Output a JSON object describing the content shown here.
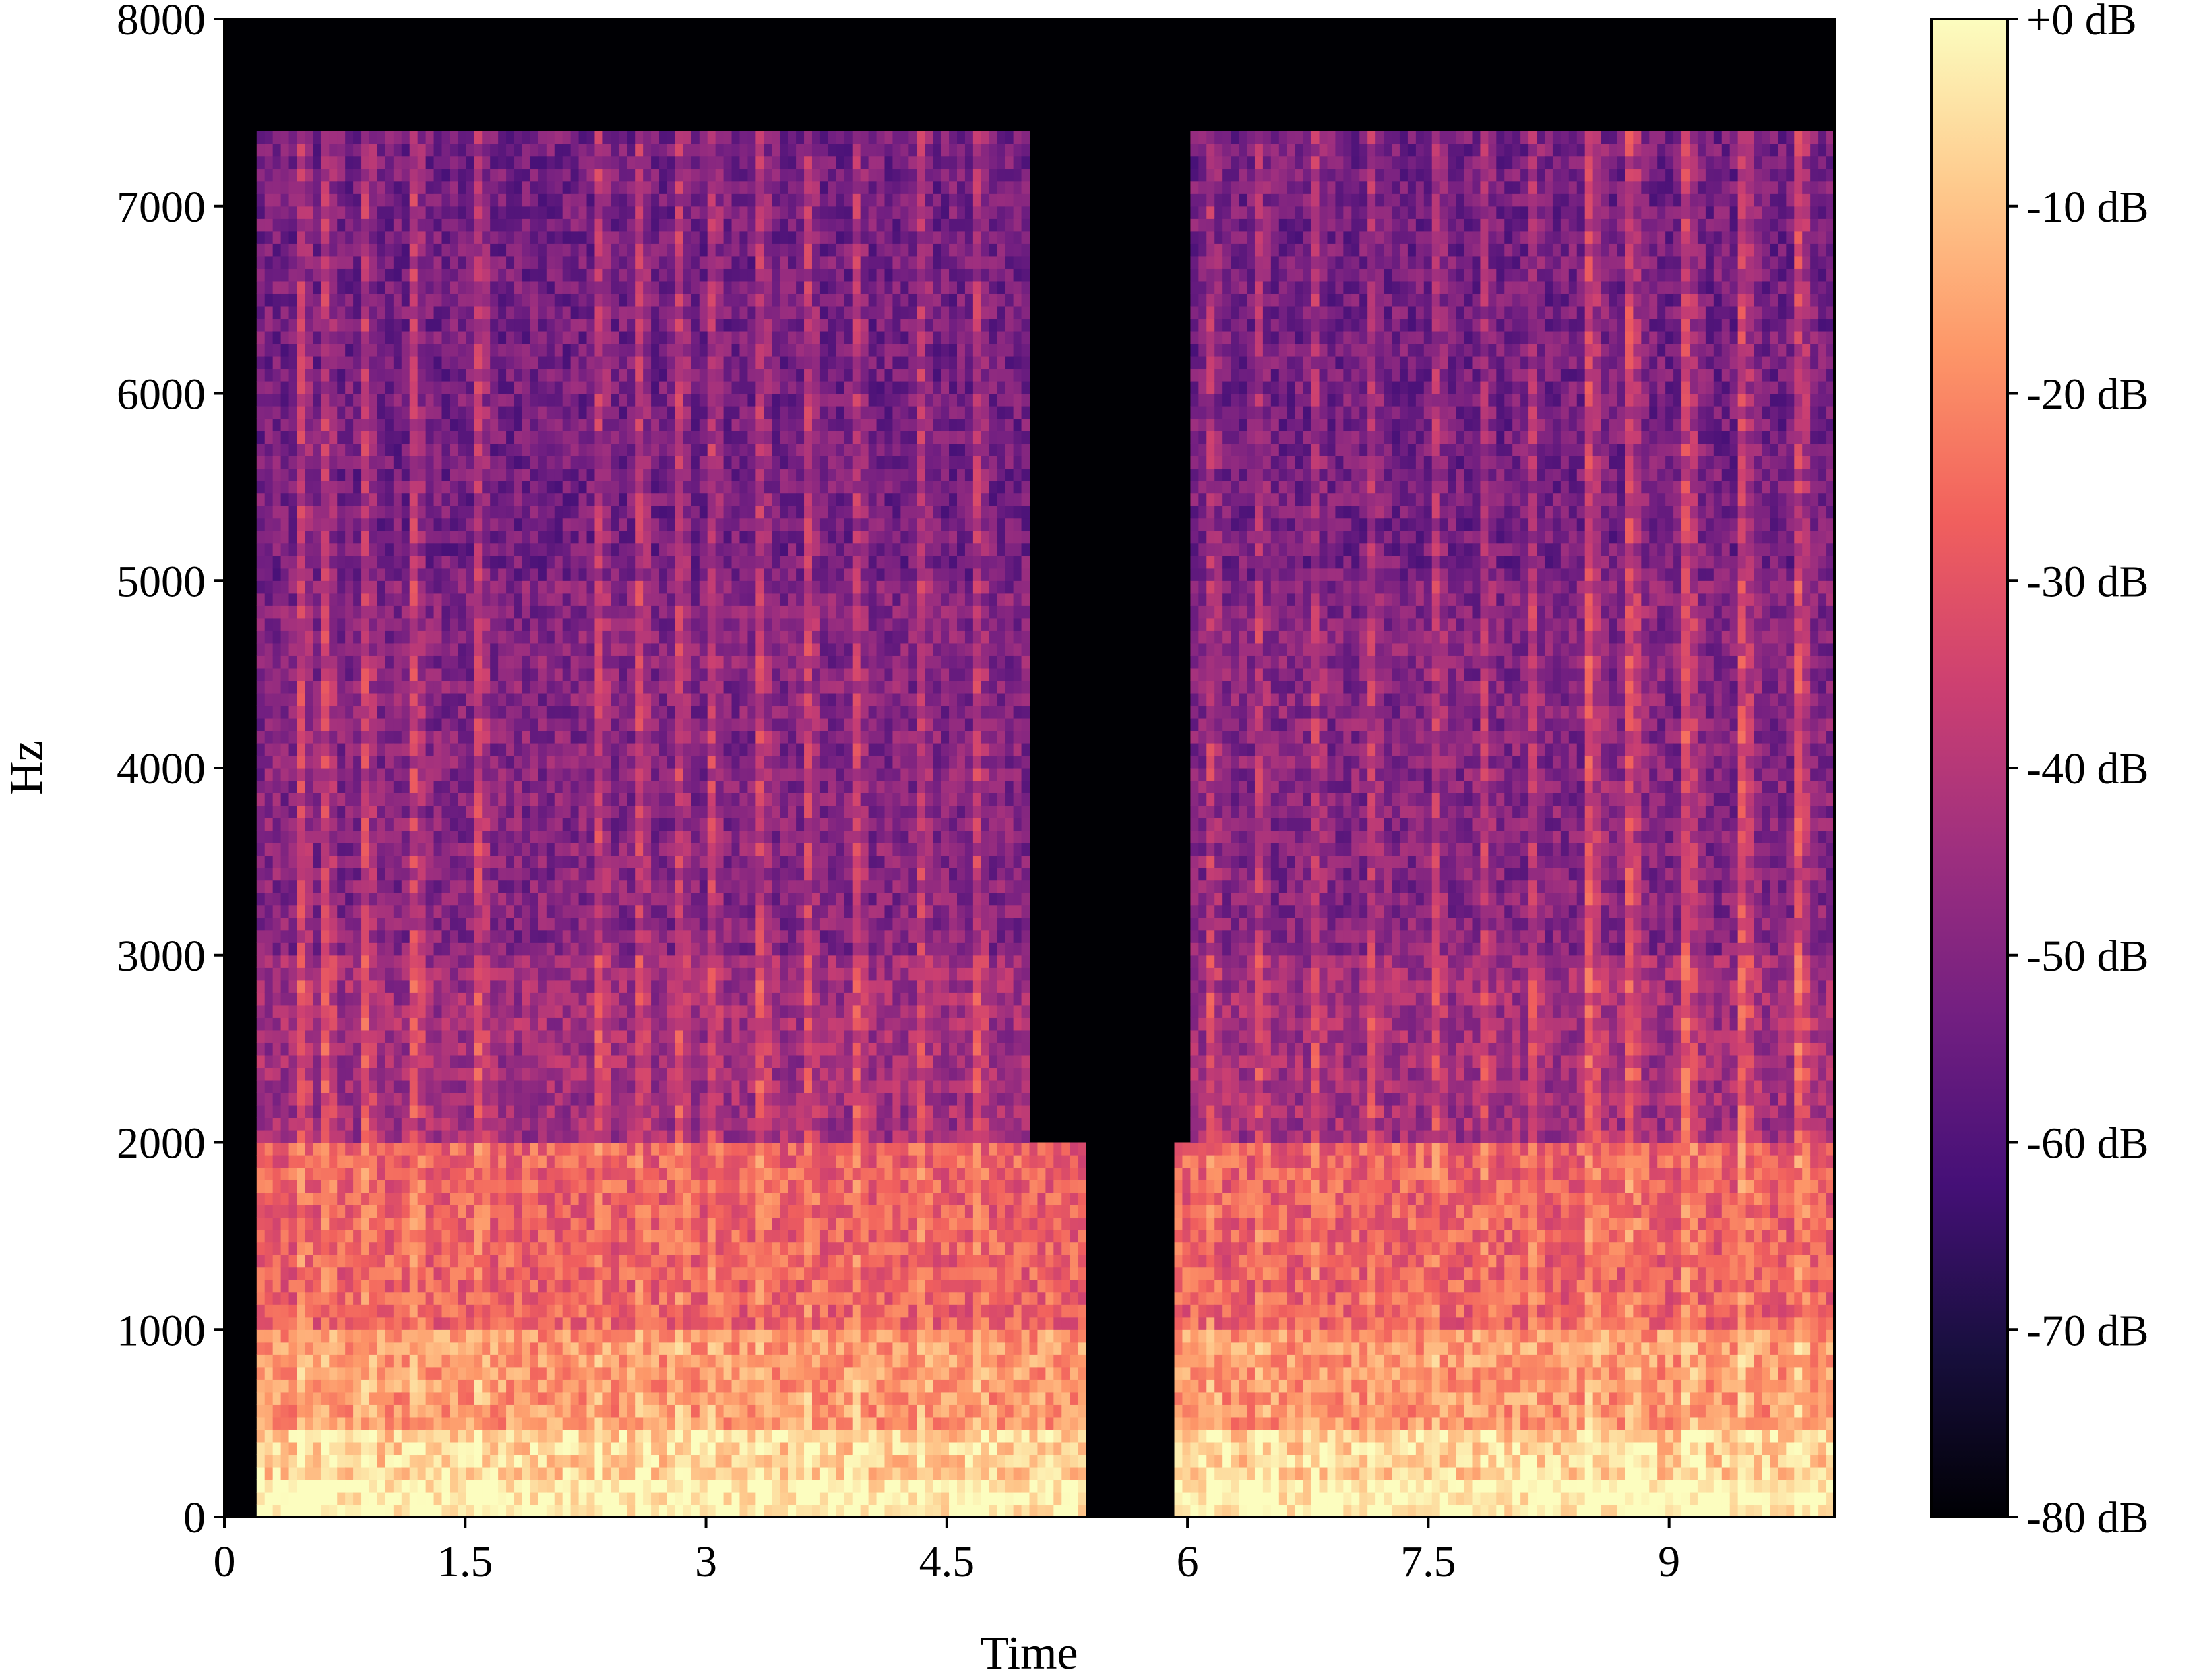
{
  "chart_data": {
    "type": "heatmap",
    "title": "",
    "xlabel": "Time",
    "ylabel": "Hz",
    "xlim": [
      0,
      10.03
    ],
    "ylim": [
      0,
      8000
    ],
    "x_ticks": [
      0,
      1.5,
      3,
      4.5,
      6,
      7.5,
      9
    ],
    "x_tick_labels": [
      "0",
      "1.5",
      "3",
      "4.5",
      "6",
      "7.5",
      "9"
    ],
    "y_ticks": [
      0,
      1000,
      2000,
      3000,
      4000,
      5000,
      6000,
      7000,
      8000
    ],
    "y_tick_labels": [
      "0",
      "1000",
      "2000",
      "3000",
      "4000",
      "5000",
      "6000",
      "7000",
      "8000"
    ],
    "colorbar": {
      "colormap": "magma",
      "range_db": [
        -80,
        0
      ],
      "ticks": [
        0,
        -10,
        -20,
        -30,
        -40,
        -50,
        -60,
        -70,
        -80
      ],
      "tick_labels": [
        "+0 dB",
        "-10 dB",
        "-20 dB",
        "-30 dB",
        "-40 dB",
        "-50 dB",
        "-60 dB",
        "-70 dB",
        "-80 dB"
      ]
    },
    "spectral_bands_hz": [
      {
        "low": 0,
        "high": 200,
        "level": 0.98
      },
      {
        "low": 200,
        "high": 500,
        "level": 0.9
      },
      {
        "low": 500,
        "high": 1000,
        "level": 0.78
      },
      {
        "low": 1000,
        "high": 2000,
        "level": 0.66
      },
      {
        "low": 2000,
        "high": 3000,
        "level": 0.45
      },
      {
        "low": 3000,
        "high": 5000,
        "level": 0.38
      },
      {
        "low": 5000,
        "high": 7400,
        "level": 0.34
      },
      {
        "low": 7400,
        "high": 8000,
        "level": 0.0
      }
    ],
    "silent_regions_s": [
      [
        0,
        0.18
      ],
      [
        5.0,
        6.0
      ]
    ],
    "onsets_s": [
      0.45,
      0.6,
      0.85,
      1.15,
      1.55,
      2.3,
      2.55,
      2.8,
      3.0,
      3.3,
      3.6,
      3.9,
      4.3,
      4.65,
      6.1,
      6.4,
      6.75,
      7.1,
      7.5,
      7.8,
      8.1,
      8.5,
      8.75,
      9.1,
      9.45,
      9.8
    ]
  },
  "colors": {
    "magma_stops": [
      "#000004",
      "#180f3e",
      "#451077",
      "#721f81",
      "#9e2f7f",
      "#cd4071",
      "#f1605d",
      "#fd9668",
      "#feca8d",
      "#fcfdbf"
    ]
  }
}
